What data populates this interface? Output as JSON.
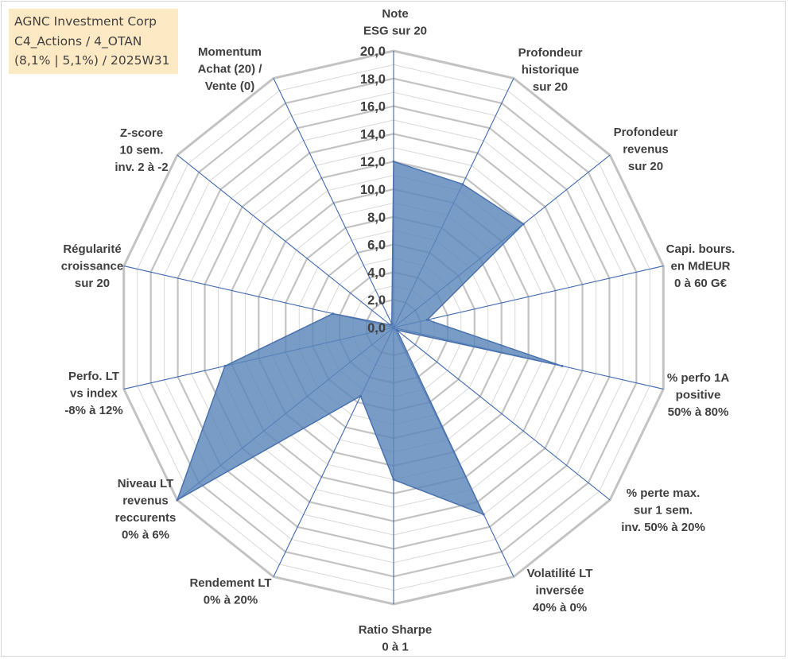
{
  "title_box": {
    "line1": "AGNC Investment Corp",
    "line2": "C4_Actions / 4_OTAN",
    "line3": "(8,1% | 5,1%) / 2025W31"
  },
  "chart_data": {
    "type": "radar",
    "scale_min": 0,
    "scale_max": 20,
    "tick_step": 2,
    "ticks": [
      "0,0",
      "2,0",
      "4,0",
      "6,0",
      "8,0",
      "10,0",
      "12,0",
      "14,0",
      "16,0",
      "18,0",
      "20,0"
    ],
    "axes": [
      {
        "label": [
          "Note",
          "ESG sur 20"
        ],
        "value": 12.0
      },
      {
        "label": [
          "Profondeur",
          "historique",
          "sur 20"
        ],
        "value": 11.5
      },
      {
        "label": [
          "Profondeur",
          "revenus",
          "sur 20"
        ],
        "value": 12.0
      },
      {
        "label": [
          "Capi. bours.",
          "en MdEUR",
          "0 à 60 G€"
        ],
        "value": 2.5
      },
      {
        "label": [
          "% perfo 1A",
          "positive",
          "50% à 80%"
        ],
        "value": 12.5
      },
      {
        "label": [
          "% perte max.",
          "sur 1 sem.",
          "inv. 50% à 20%"
        ],
        "value": 0.3
      },
      {
        "label": [
          "Volatilité LT",
          "inversée",
          "40% à 0%"
        ],
        "value": 15.0
      },
      {
        "label": [
          "Ratio Sharpe",
          "0 à 1"
        ],
        "value": 11.0
      },
      {
        "label": [
          "Rendement LT",
          "0% à 20%"
        ],
        "value": 5.5
      },
      {
        "label": [
          "Niveau LT",
          "revenus",
          "reccurents",
          "0% à 6%"
        ],
        "value": 20.0
      },
      {
        "label": [
          "Perfo. LT",
          "vs index",
          "-8% à 12%"
        ],
        "value": 12.5
      },
      {
        "label": [
          "Régularité",
          "croissance",
          "sur 20"
        ],
        "value": 4.5
      },
      {
        "label": [
          "Z-score",
          "10 sem.",
          "inv. 2 à -2"
        ],
        "value": 0.3
      },
      {
        "label": [
          "Momentum",
          "Achat (20) /",
          "Vente (0)"
        ],
        "value": 0.3
      }
    ],
    "colors": {
      "grid": "#c3c3c3",
      "grid_minor": "#d9d9d9",
      "spoke": "#3f68b1",
      "fill": "#5b86b9",
      "fill_stroke": "#4a72b0"
    },
    "grid": true,
    "legend": "none"
  }
}
